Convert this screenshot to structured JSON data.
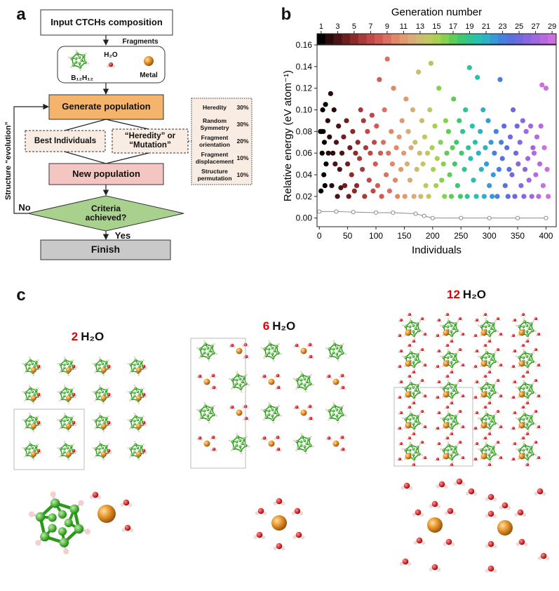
{
  "panel_labels": [
    "a",
    "b",
    "c"
  ],
  "flowchart": {
    "input": "Input CTCHs composition",
    "fragments_title": "Fragments",
    "fragments": [
      "B₁₂H₁₂",
      "H₂O",
      "Metal"
    ],
    "generate": "Generate population",
    "best": "Best Individuals",
    "heredity": "“Heredity” or “Mutation”",
    "new": "New population",
    "criteria": "Criteria achieved?",
    "yes": "Yes",
    "no": "No",
    "finish": "Finish",
    "loop": "Structure “evolution”",
    "operations": [
      {
        "name": "Heredity",
        "share": "30%"
      },
      {
        "name": "Random Symmetry",
        "share": "30%"
      },
      {
        "name": "Fragment orientation",
        "share": "20%"
      },
      {
        "name": "Fragment displacement",
        "share": "10%"
      },
      {
        "name": "Structure permutation",
        "share": "10%"
      }
    ]
  },
  "chart_data": {
    "type": "scatter",
    "xlabel": "Individuals",
    "ylabel": "Relative energy (eV atom⁻¹)",
    "xlim": [
      -4,
      418
    ],
    "ylim": [
      -0.008,
      0.16
    ],
    "xticks": [
      0,
      50,
      100,
      150,
      200,
      250,
      300,
      350,
      400
    ],
    "yticks": [
      {
        "value": 0,
        "label": "0.00"
      },
      0.02,
      0.04,
      0.06,
      0.08,
      {
        "value": 0.1,
        "label": "0.10"
      },
      0.12,
      0.14,
      0.16
    ],
    "colorbar": {
      "label": "Generation number",
      "lim": [
        0.5,
        29.5
      ],
      "ticks": [
        1,
        3,
        5,
        7,
        9,
        11,
        13,
        15,
        17,
        19,
        21,
        23,
        25,
        27,
        29
      ]
    },
    "series": [
      {
        "color": "#000000",
        "x": [
          2,
          3,
          4,
          5,
          6,
          7,
          8,
          9,
          10,
          11,
          12
        ],
        "values": [
          0.08,
          0.025,
          0.08,
          0.06,
          0.1,
          0.08,
          0.04,
          0.07,
          0.03,
          0.105,
          0.05
        ]
      },
      {
        "color": "#2a0a0a",
        "x": [
          15,
          16,
          18,
          20,
          22,
          24,
          26
        ],
        "values": [
          0.09,
          0.06,
          0.075,
          0.115,
          0.03,
          0.06,
          0.1
        ]
      },
      {
        "color": "#4a1414",
        "x": [
          28,
          30,
          32,
          34,
          36,
          38,
          40
        ],
        "values": [
          0.05,
          0.07,
          0.02,
          0.085,
          0.045,
          0.028,
          0.06
        ]
      },
      {
        "color": "#6e1e1e",
        "x": [
          43,
          45,
          48,
          50,
          52,
          54
        ],
        "values": [
          0.075,
          0.03,
          0.09,
          0.05,
          0.02,
          0.065
        ]
      },
      {
        "color": "#8c2a2a",
        "x": [
          57,
          59,
          62,
          64,
          66,
          68
        ],
        "values": [
          0.04,
          0.08,
          0.025,
          0.06,
          0.03,
          0.07
        ]
      },
      {
        "color": "#a83a3a",
        "x": [
          71,
          73,
          76,
          78,
          80,
          82
        ],
        "values": [
          0.055,
          0.1,
          0.045,
          0.09,
          0.02,
          0.065
        ]
      },
      {
        "color": "#c24848",
        "x": [
          85,
          88,
          90,
          93,
          95,
          97
        ],
        "values": [
          0.08,
          0.035,
          0.06,
          0.095,
          0.025,
          0.07
        ]
      },
      {
        "color": "#d25a55",
        "x": [
          99,
          101,
          103,
          106,
          108,
          110
        ],
        "values": [
          0.05,
          0.085,
          0.03,
          0.128,
          0.06,
          0.02
        ]
      },
      {
        "color": "#dc7060",
        "x": [
          113,
          115,
          118,
          120,
          122,
          124
        ],
        "values": [
          0.07,
          0.1,
          0.04,
          0.147,
          0.06,
          0.025
        ]
      },
      {
        "color": "#e08868",
        "x": [
          127,
          129,
          131,
          134,
          136,
          138
        ],
        "values": [
          0.08,
          0.05,
          0.12,
          0.035,
          0.065,
          0.02
        ]
      },
      {
        "color": "#e09a70",
        "x": [
          141,
          144,
          146,
          149,
          151,
          153
        ],
        "values": [
          0.075,
          0.045,
          0.09,
          0.06,
          0.02,
          0.11
        ]
      },
      {
        "color": "#d8ac78",
        "x": [
          155,
          157,
          160,
          162,
          165,
          167
        ],
        "values": [
          0.05,
          0.08,
          0.035,
          0.065,
          0.1,
          0.02
        ]
      },
      {
        "color": "#ccbc70",
        "x": [
          169,
          172,
          175,
          177,
          179,
          181
        ],
        "values": [
          0.07,
          0.045,
          0.135,
          0.06,
          0.02,
          0.09
        ]
      },
      {
        "color": "#c0c860",
        "x": [
          183,
          186,
          188,
          191,
          193,
          195
        ],
        "values": [
          0.05,
          0.075,
          0.03,
          0.06,
          0.02,
          0.1
        ]
      },
      {
        "color": "#a8d050",
        "x": [
          197,
          199,
          201,
          204,
          206,
          208
        ],
        "values": [
          0.143,
          0.065,
          0.045,
          0.085,
          0.03,
          0.055
        ]
      },
      {
        "color": "#88d050",
        "x": [
          211,
          214,
          216,
          219,
          221,
          223
        ],
        "values": [
          0.12,
          0.07,
          0.035,
          0.05,
          0.02,
          0.09
        ]
      },
      {
        "color": "#60cc58",
        "x": [
          225,
          228,
          230,
          233,
          235,
          237
        ],
        "values": [
          0.06,
          0.08,
          0.04,
          0.02,
          0.065,
          0.11
        ]
      },
      {
        "color": "#40c870",
        "x": [
          239,
          242,
          244,
          247,
          249,
          251
        ],
        "values": [
          0.05,
          0.07,
          0.03,
          0.09,
          0.02,
          0.06
        ]
      },
      {
        "color": "#30c490",
        "x": [
          253,
          256,
          258,
          261,
          263,
          265
        ],
        "values": [
          0.08,
          0.045,
          0.1,
          0.02,
          0.065,
          0.139
        ]
      },
      {
        "color": "#28c0b0",
        "x": [
          267,
          270,
          272,
          275,
          277,
          279
        ],
        "values": [
          0.055,
          0.085,
          0.035,
          0.07,
          0.02,
          0.13
        ]
      },
      {
        "color": "#30b0c8",
        "x": [
          281,
          284,
          286,
          289,
          291,
          293
        ],
        "values": [
          0.06,
          0.08,
          0.045,
          0.1,
          0.02,
          0.065
        ]
      },
      {
        "color": "#3898d8",
        "x": [
          295,
          298,
          300,
          303,
          305,
          307
        ],
        "values": [
          0.05,
          0.09,
          0.03,
          0.07,
          0.02,
          0.04
        ]
      },
      {
        "color": "#4880e0",
        "x": [
          309,
          312,
          314,
          317,
          319,
          321
        ],
        "values": [
          0.06,
          0.08,
          0.02,
          0.045,
          0.128,
          0.07
        ]
      },
      {
        "color": "#5870e0",
        "x": [
          323,
          326,
          328,
          331,
          333,
          335
        ],
        "values": [
          0.055,
          0.085,
          0.03,
          0.065,
          0.02,
          0.045
        ]
      },
      {
        "color": "#7068e0",
        "x": [
          337,
          340,
          342,
          345,
          347,
          349
        ],
        "values": [
          0.075,
          0.04,
          0.1,
          0.02,
          0.06,
          0.085
        ]
      },
      {
        "color": "#8868e0",
        "x": [
          351,
          354,
          356,
          359,
          361,
          363
        ],
        "values": [
          0.05,
          0.07,
          0.03,
          0.09,
          0.02,
          0.045
        ]
      },
      {
        "color": "#a068e0",
        "x": [
          365,
          368,
          370,
          373,
          375,
          377
        ],
        "values": [
          0.08,
          0.055,
          0.035,
          0.085,
          0.02,
          0.065
        ]
      },
      {
        "color": "#b868e0",
        "x": [
          379,
          382,
          384,
          387,
          389,
          391
        ],
        "values": [
          0.06,
          0.04,
          0.075,
          0.02,
          0.05,
          0.085
        ]
      },
      {
        "color": "#cc70e0",
        "x": [
          393,
          395,
          397,
          400,
          402,
          404
        ],
        "values": [
          0.123,
          0.03,
          0.065,
          0.12,
          0.045,
          0.02
        ]
      }
    ],
    "best": {
      "color": "#8c8c8c",
      "x": [
        0,
        30,
        60,
        100,
        130,
        170,
        185,
        200,
        250,
        300,
        350,
        400
      ],
      "values": [
        0.006,
        0.006,
        0.0055,
        0.005,
        0.005,
        0.004,
        0.002,
        0,
        0,
        0,
        0,
        0
      ]
    }
  },
  "structures": [
    {
      "count": "2",
      "formula": "H₂O"
    },
    {
      "count": "6",
      "formula": "H₂O"
    },
    {
      "count": "12",
      "formula": "H₂O"
    }
  ]
}
